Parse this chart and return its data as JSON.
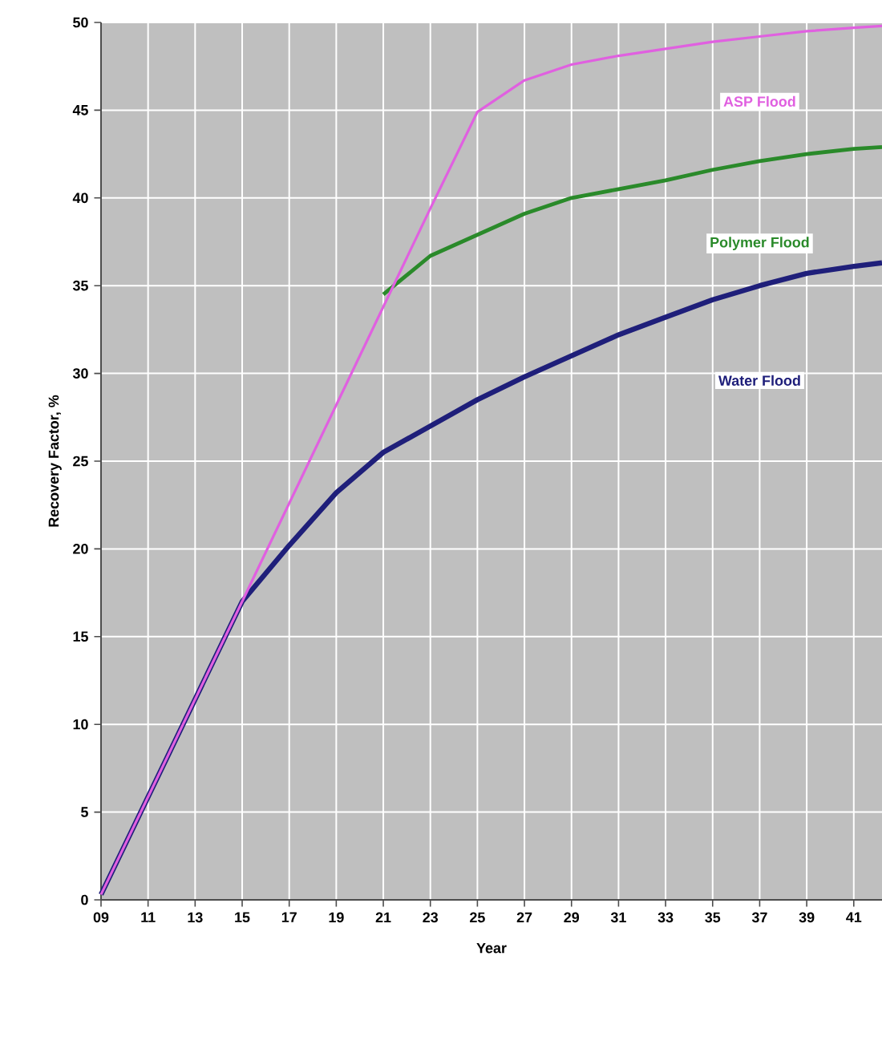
{
  "chart_data": {
    "type": "line",
    "xlabel": "Year",
    "ylabel": "Recovery Factor, %",
    "xlim": [
      9,
      42.2
    ],
    "ylim": [
      0,
      50
    ],
    "xticks": [
      {
        "value": 9,
        "label": "09"
      },
      11,
      13,
      15,
      17,
      19,
      21,
      23,
      25,
      27,
      29,
      31,
      33,
      35,
      37,
      39,
      41
    ],
    "yticks": [
      0,
      5,
      10,
      15,
      20,
      25,
      30,
      35,
      40,
      45,
      50
    ],
    "grid": true,
    "marker": "none",
    "line_style": "solid",
    "series": [
      {
        "name": "ASP Flood",
        "color": "#e060e0",
        "x": [
          9,
          15,
          17,
          19,
          21,
          23,
          25,
          27,
          29,
          31,
          33,
          35,
          37,
          39,
          41,
          42.2
        ],
        "values": [
          0.3,
          17,
          22.6,
          28.2,
          33.8,
          39.4,
          44.9,
          46.7,
          47.6,
          48.1,
          48.5,
          48.9,
          49.2,
          49.5,
          49.7,
          49.8
        ]
      },
      {
        "name": "Polymer Flood",
        "color": "#2a8a2a",
        "x": [
          21,
          23,
          25,
          27,
          29,
          31,
          33,
          35,
          37,
          39,
          41,
          42.2
        ],
        "values": [
          34.5,
          36.7,
          37.9,
          39.1,
          40.0,
          40.5,
          41.0,
          41.6,
          42.1,
          42.5,
          42.8,
          42.9
        ]
      },
      {
        "name": "Water Flood",
        "color": "#1f1f7a",
        "x": [
          9,
          15,
          17,
          19,
          21,
          23,
          25,
          27,
          29,
          31,
          33,
          35,
          37,
          39,
          41,
          42.2
        ],
        "values": [
          0.3,
          17,
          20.2,
          23.2,
          25.5,
          27.0,
          28.5,
          29.8,
          31.0,
          32.2,
          33.2,
          34.2,
          35.0,
          35.7,
          36.1,
          36.3
        ]
      }
    ]
  }
}
